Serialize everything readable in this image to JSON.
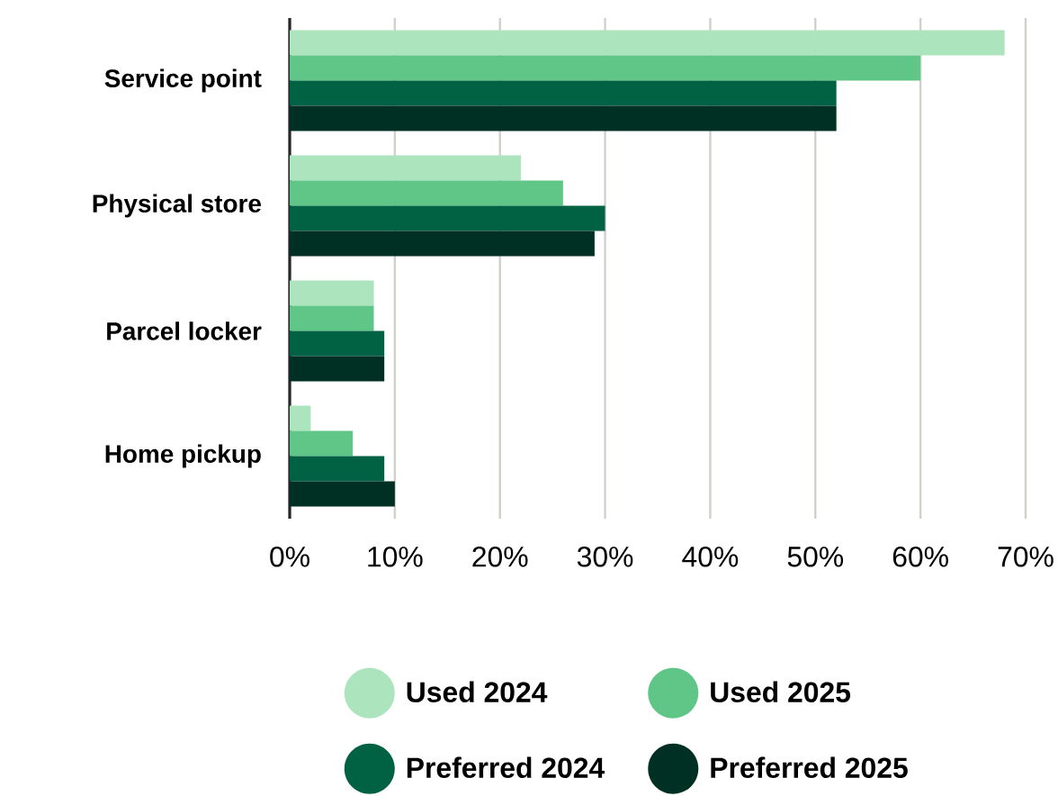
{
  "chart_data": {
    "type": "bar",
    "orientation": "horizontal",
    "categories": [
      "Service point",
      "Physical store",
      "Parcel locker",
      "Home pickup"
    ],
    "series": [
      {
        "name": "Used 2024",
        "color": "#ace5bd",
        "values": [
          68,
          22,
          8,
          2
        ]
      },
      {
        "name": "Used 2025",
        "color": "#5fc687",
        "values": [
          60,
          26,
          8,
          6
        ]
      },
      {
        "name": "Preferred 2024",
        "color": "#006242",
        "values": [
          52,
          30,
          9,
          9
        ]
      },
      {
        "name": "Preferred 2025",
        "color": "#002f24",
        "values": [
          52,
          29,
          9,
          10
        ]
      }
    ],
    "xlim": [
      0,
      70
    ],
    "xticks": [
      {
        "value": 0,
        "label": "0%"
      },
      {
        "value": 10,
        "label": "10%"
      },
      {
        "value": 20,
        "label": "20%"
      },
      {
        "value": 30,
        "label": "30%"
      },
      {
        "value": 40,
        "label": "40%"
      },
      {
        "value": 50,
        "label": "50%"
      },
      {
        "value": 60,
        "label": "60%"
      },
      {
        "value": 70,
        "label": "70%"
      }
    ],
    "grid": "x",
    "legend": "bottom"
  }
}
